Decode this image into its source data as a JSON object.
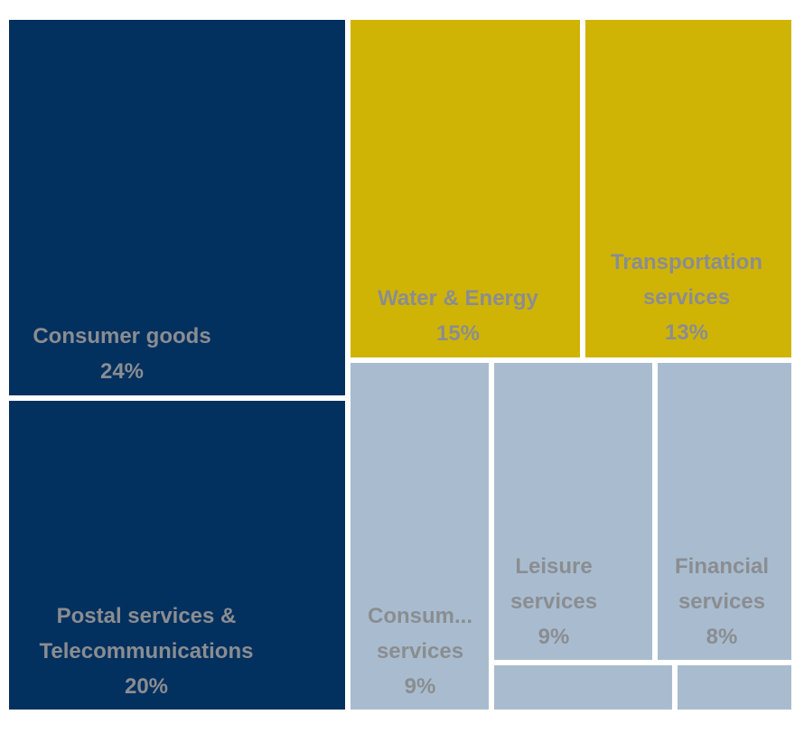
{
  "chart_data": {
    "type": "treemap",
    "colors": {
      "group_a": "#02305f",
      "group_b": "#cfb406",
      "group_c": "#a9bccf",
      "label": "#8a8d91"
    },
    "tiles": [
      {
        "lines": [
          "Consumer goods"
        ],
        "percent": "24%",
        "value": 24,
        "color_key": "group_a"
      },
      {
        "lines": [
          "Postal services &",
          "Telecommunications"
        ],
        "percent": "20%",
        "value": 20,
        "color_key": "group_a"
      },
      {
        "lines": [
          "Water & Energy"
        ],
        "percent": "15%",
        "value": 15,
        "color_key": "group_b"
      },
      {
        "lines": [
          "Transportation",
          "services"
        ],
        "percent": "13%",
        "value": 13,
        "color_key": "group_b"
      },
      {
        "lines": [
          "Consum...",
          "services"
        ],
        "percent": "9%",
        "value": 9,
        "color_key": "group_c"
      },
      {
        "lines": [
          "Leisure",
          "services"
        ],
        "percent": "9%",
        "value": 9,
        "color_key": "group_c"
      },
      {
        "lines": [
          "Financial",
          "services"
        ],
        "percent": "8%",
        "value": 8,
        "color_key": "group_c"
      },
      {
        "lines": [],
        "percent": "",
        "value": null,
        "color_key": "group_c"
      },
      {
        "lines": [],
        "percent": "",
        "value": null,
        "color_key": "group_c"
      }
    ]
  }
}
